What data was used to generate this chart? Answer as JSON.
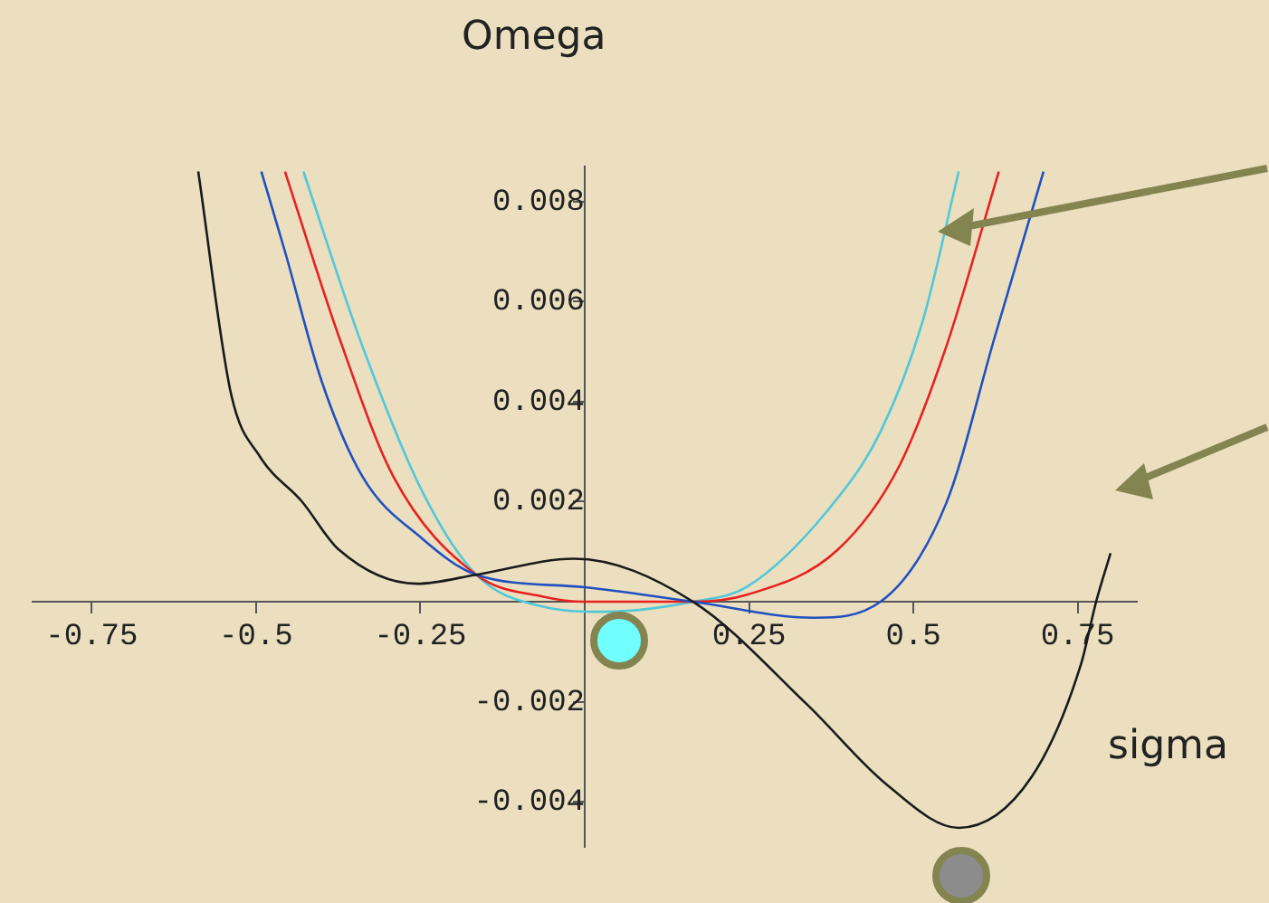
{
  "chart_data": {
    "type": "line",
    "title": "Omega",
    "xlabel": "sigma",
    "xlim": [
      -0.84,
      0.84
    ],
    "ylim": [
      -0.0049,
      0.0087
    ],
    "xticks": [
      -0.75,
      -0.5,
      -0.25,
      0.25,
      0.5,
      0.75
    ],
    "yticks": [
      -0.004,
      -0.002,
      0.002,
      0.004,
      0.006,
      0.008
    ],
    "marker": "none",
    "series": [
      {
        "color": "#1a1a1a",
        "x": [
          -0.588,
          -0.538,
          -0.494,
          -0.43,
          -0.374,
          -0.255,
          -0.165,
          -0.016,
          0.165,
          0.338,
          0.46,
          0.569,
          0.68,
          0.755,
          0.778,
          0.8
        ],
        "values": [
          0.0086,
          0.00415,
          0.0029,
          0.002,
          0.00104,
          0.00036,
          0.00054,
          0.00086,
          0,
          -0.00205,
          -0.00366,
          -0.00452,
          -0.0035,
          -0.00125,
          0,
          0.00097
        ]
      },
      {
        "color": "#2050c0",
        "x": [
          -0.492,
          -0.456,
          -0.4,
          -0.338,
          -0.247,
          -0.165,
          0,
          0.165,
          0.349,
          0.45,
          0.55,
          0.624,
          0.698
        ],
        "values": [
          0.0086,
          0.007,
          0.0044,
          0.0025,
          0.00126,
          0.00054,
          0.00029,
          0,
          -0.00032,
          0,
          0.00197,
          0.0053,
          0.0086
        ]
      },
      {
        "color": "#e82020",
        "x": [
          -0.456,
          -0.374,
          -0.291,
          -0.165,
          -0.063,
          0,
          0.165,
          0.247,
          0.385,
          0.478,
          0.55,
          0.63
        ],
        "values": [
          0.0086,
          0.0053,
          0.0025,
          0.00054,
          0.0001,
          0,
          0,
          0.00014,
          0.00104,
          0.0027,
          0.0051,
          0.0086
        ]
      },
      {
        "color": "#50c8d8",
        "x": [
          -0.428,
          -0.338,
          -0.247,
          -0.165,
          -0.063,
          0.03,
          0.165,
          0.247,
          0.368,
          0.45,
          0.514,
          0.569
        ],
        "values": [
          0.0086,
          0.0051,
          0.0022,
          0.00054,
          -0.0001,
          -0.0002,
          0,
          0.0003,
          0.0018,
          0.0034,
          0.0056,
          0.0086
        ]
      }
    ]
  }
}
